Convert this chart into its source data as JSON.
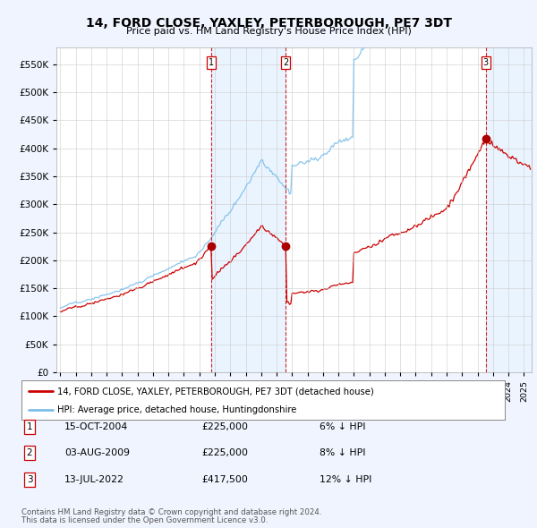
{
  "title": "14, FORD CLOSE, YAXLEY, PETERBOROUGH, PE7 3DT",
  "subtitle": "Price paid vs. HM Land Registry's House Price Index (HPI)",
  "legend_line1": "14, FORD CLOSE, YAXLEY, PETERBOROUGH, PE7 3DT (detached house)",
  "legend_line2": "HPI: Average price, detached house, Huntingdonshire",
  "footer1": "Contains HM Land Registry data © Crown copyright and database right 2024.",
  "footer2": "This data is licensed under the Open Government Licence v3.0.",
  "transactions": [
    {
      "label": "1",
      "date": "15-OCT-2004",
      "price": 225000,
      "hpi_diff": "6% ↓ HPI",
      "x_year": 2004.79
    },
    {
      "label": "2",
      "date": "03-AUG-2009",
      "price": 225000,
      "hpi_diff": "8% ↓ HPI",
      "x_year": 2009.59
    },
    {
      "label": "3",
      "date": "13-JUL-2022",
      "price": 417500,
      "hpi_diff": "12% ↓ HPI",
      "x_year": 2022.53
    }
  ],
  "hpi_color": "#7bbfea",
  "price_color": "#cc0000",
  "vline_color": "#cc0000",
  "dot_color": "#aa0000",
  "shade_color": "#ddeeff",
  "ylim": [
    0,
    580000
  ],
  "yticks": [
    0,
    50000,
    100000,
    150000,
    200000,
    250000,
    300000,
    350000,
    400000,
    450000,
    500000,
    550000
  ],
  "xlim_start": 1994.75,
  "xlim_end": 2025.5,
  "background_color": "#f0f4ff",
  "plot_bg": "#ffffff"
}
